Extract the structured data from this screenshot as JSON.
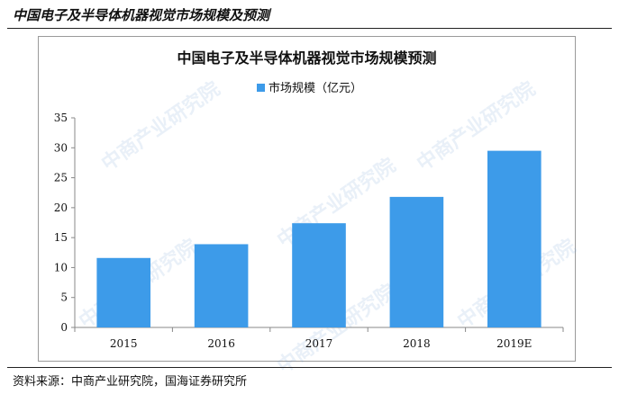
{
  "header": {
    "title": "中国电子及半导体机器视觉市场规模及预测"
  },
  "footer": {
    "source": "资料来源：中商产业研究院，国海证券研究所"
  },
  "watermark": {
    "text": "中商产业研究院"
  },
  "colors": {
    "bar": "#3d9be9",
    "axis": "#888888"
  },
  "chart_data": {
    "type": "bar",
    "title": "中国电子及半导体机器视觉市场规模预测",
    "categories": [
      "2015",
      "2016",
      "2017",
      "2018",
      "2019E"
    ],
    "series": [
      {
        "name": "市场规模（亿元）",
        "values": [
          11.6,
          13.9,
          17.4,
          21.8,
          29.5
        ]
      }
    ],
    "ylim": [
      0,
      35
    ],
    "yticks": [
      0,
      5,
      10,
      15,
      20,
      25,
      30,
      35
    ],
    "legend": "top-center",
    "grid": false
  }
}
